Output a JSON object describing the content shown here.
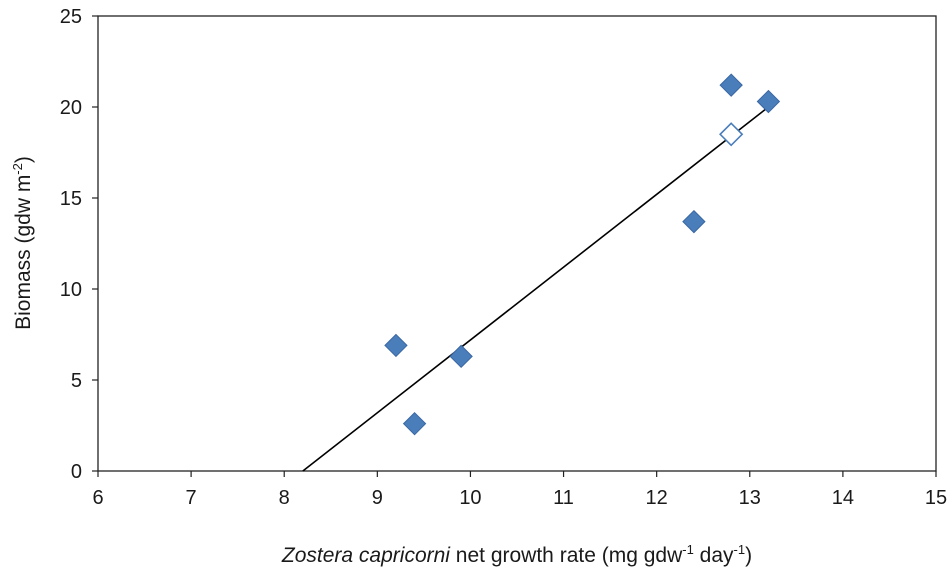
{
  "chart_data": {
    "type": "scatter",
    "title": "",
    "xlabel": {
      "italic": "Zostera capricorni",
      "prefix": " net growth rate (mg gdw",
      "sup1": "-1",
      "middle": " day",
      "sup2": "-1",
      "suffix": ")"
    },
    "ylabel": {
      "prefix": "Biomass (gdw m",
      "sup": "-2",
      "suffix": ")"
    },
    "xlim": [
      6,
      15
    ],
    "ylim": [
      0,
      25
    ],
    "xticks": [
      "6",
      "7",
      "8",
      "9",
      "10",
      "11",
      "12",
      "13",
      "14",
      "15"
    ],
    "yticks": [
      "0",
      "5",
      "10",
      "15",
      "20",
      "25"
    ],
    "grid": false,
    "legend": "none",
    "marker": "diamond",
    "marker_color": "#4a7ebb",
    "marker_edge": "#3a67a3",
    "series": [
      {
        "points": [
          {
            "x": 9.2,
            "y": 6.9
          },
          {
            "x": 9.4,
            "y": 2.6
          },
          {
            "x": 9.9,
            "y": 6.3
          },
          {
            "x": 12.4,
            "y": 13.7
          },
          {
            "x": 12.8,
            "y": 21.2
          },
          {
            "x": 13.2,
            "y": 20.3
          }
        ],
        "filled": true
      },
      {
        "points": [
          {
            "x": 12.8,
            "y": 18.5
          }
        ],
        "filled": false
      }
    ],
    "trendline": {
      "x1": 8.2,
      "y1": 0,
      "x2": 13.2,
      "y2": 20.0,
      "color": "#000000"
    }
  }
}
